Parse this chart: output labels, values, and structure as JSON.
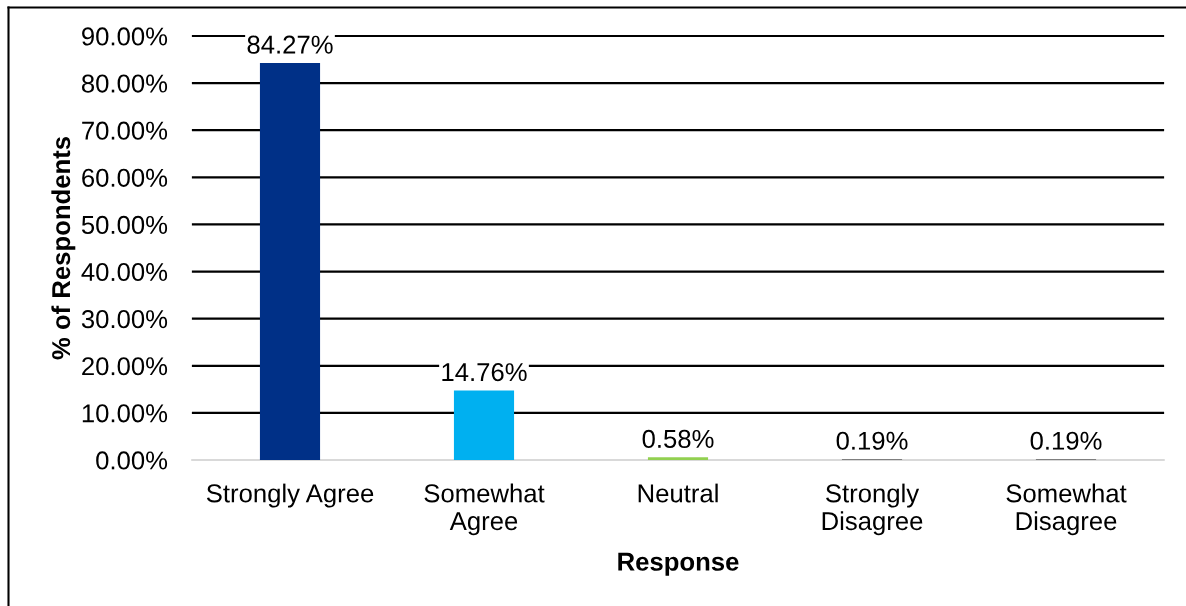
{
  "chart_data": {
    "type": "bar",
    "xlabel": "Response",
    "ylabel": "% of Respondents",
    "categories": [
      "Strongly Agree",
      "Somewhat\nAgree",
      "Neutral",
      "Strongly\nDisagree",
      "Somewhat\nDisagree"
    ],
    "values": [
      84.27,
      14.76,
      0.58,
      0.19,
      0.19
    ],
    "colors": [
      "#003087",
      "#00b0f0",
      "#92d050",
      "#7f7f7f",
      "#7f7f7f"
    ],
    "value_labels": [
      "84.27%",
      "14.76%",
      "0.58%",
      "0.19%",
      "0.19%"
    ],
    "ylim": [
      0,
      90
    ],
    "yticks": [
      {
        "value": 0,
        "label": "0.00%"
      },
      {
        "value": 10,
        "label": "10.00%"
      },
      {
        "value": 20,
        "label": "20.00%"
      },
      {
        "value": 30,
        "label": "30.00%"
      },
      {
        "value": 40,
        "label": "40.00%"
      },
      {
        "value": 50,
        "label": "50.00%"
      },
      {
        "value": 60,
        "label": "60.00%"
      },
      {
        "value": 70,
        "label": "70.00%"
      },
      {
        "value": 80,
        "label": "80.00%"
      },
      {
        "value": 90,
        "label": "90.00%"
      }
    ],
    "grid": "y"
  }
}
